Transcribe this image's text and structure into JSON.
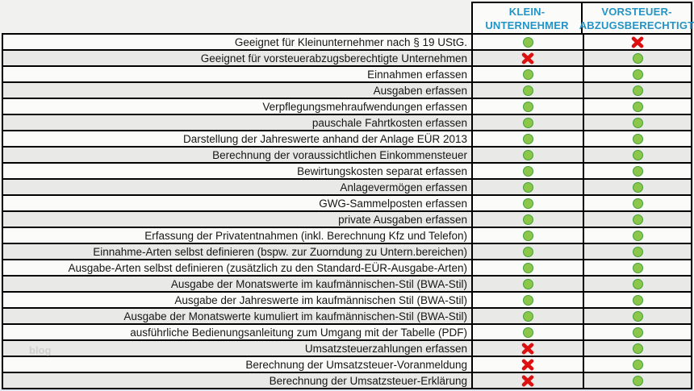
{
  "header": {
    "col1": {
      "line1": "KLEIN-",
      "line2": "UNTERNEHMER"
    },
    "col2": {
      "line1": "VORSTEUER-",
      "line2": "ABZUGSBERECHTIGT"
    }
  },
  "rows": [
    {
      "label": "Geeignet für Kleinunternehmer nach § 19 UStG.",
      "kleinunternehmer": "check",
      "vorsteuerabzugsberechtigt": "cross"
    },
    {
      "label": "Geeignet für vorsteuerabzugsberechtigte Unternehmen",
      "kleinunternehmer": "cross",
      "vorsteuerabzugsberechtigt": "check"
    },
    {
      "label": "Einnahmen erfassen",
      "kleinunternehmer": "check",
      "vorsteuerabzugsberechtigt": "check"
    },
    {
      "label": "Ausgaben erfassen",
      "kleinunternehmer": "check",
      "vorsteuerabzugsberechtigt": "check"
    },
    {
      "label": "Verpflegungsmehraufwendungen erfassen",
      "kleinunternehmer": "check",
      "vorsteuerabzugsberechtigt": "check"
    },
    {
      "label": "pauschale Fahrtkosten erfassen",
      "kleinunternehmer": "check",
      "vorsteuerabzugsberechtigt": "check"
    },
    {
      "label": "Darstellung der Jahreswerte anhand der Anlage EÜR 2013",
      "kleinunternehmer": "check",
      "vorsteuerabzugsberechtigt": "check"
    },
    {
      "label": "Berechnung der voraussichtlichen Einkommensteuer",
      "kleinunternehmer": "check",
      "vorsteuerabzugsberechtigt": "check"
    },
    {
      "label": "Bewirtungskosten separat erfassen",
      "kleinunternehmer": "check",
      "vorsteuerabzugsberechtigt": "check"
    },
    {
      "label": "Anlagevermögen erfassen",
      "kleinunternehmer": "check",
      "vorsteuerabzugsberechtigt": "check"
    },
    {
      "label": "GWG-Sammelposten erfassen",
      "kleinunternehmer": "check",
      "vorsteuerabzugsberechtigt": "check"
    },
    {
      "label": "private Ausgaben erfassen",
      "kleinunternehmer": "check",
      "vorsteuerabzugsberechtigt": "check"
    },
    {
      "label": "Erfassung der Privatentnahmen (inkl. Berechnung Kfz und Telefon)",
      "kleinunternehmer": "check",
      "vorsteuerabzugsberechtigt": "check"
    },
    {
      "label": "Einnahme-Arten selbst definieren (bspw. zur Zuorndung zu Untern.bereichen)",
      "kleinunternehmer": "check",
      "vorsteuerabzugsberechtigt": "check"
    },
    {
      "label": "Ausgabe-Arten selbst definieren (zusätzlich zu den Standard-EÜR-Ausgabe-Arten)",
      "kleinunternehmer": "check",
      "vorsteuerabzugsberechtigt": "check"
    },
    {
      "label": "Ausgabe der Monatswerte im kaufmännischen-Stil (BWA-Stil)",
      "kleinunternehmer": "check",
      "vorsteuerabzugsberechtigt": "check"
    },
    {
      "label": "Ausgabe der Jahreswerte im kaufmännischen Stil (BWA-Stil)",
      "kleinunternehmer": "check",
      "vorsteuerabzugsberechtigt": "check"
    },
    {
      "label": "Ausgabe der Monatswerte kumuliert im kaufmännischen-Stil (BWA-Stil)",
      "kleinunternehmer": "check",
      "vorsteuerabzugsberechtigt": "check"
    },
    {
      "label": "ausführliche Bedienungsanleitung zum Umgang mit der Tabelle (PDF)",
      "kleinunternehmer": "check",
      "vorsteuerabzugsberechtigt": "check"
    },
    {
      "label": "Umsatzsteuerzahlungen erfassen",
      "kleinunternehmer": "cross",
      "vorsteuerabzugsberechtigt": "check"
    },
    {
      "label": "Berechnung der Umsatzsteuer-Voranmeldung",
      "kleinunternehmer": "cross",
      "vorsteuerabzugsberechtigt": "check"
    },
    {
      "label": "Berechnung der Umsatzsteuer-Erklärung",
      "kleinunternehmer": "cross",
      "vorsteuerabzugsberechtigt": "check"
    }
  ],
  "watermark": "blog",
  "colors": {
    "page_bg": "#f1f1ef",
    "row_bg": "#fbfbfa",
    "row_alt_bg": "#e9e9e8",
    "border": "#000000",
    "header_text": "#2494c6",
    "check_fill": "#8dc74a",
    "check_border": "#42a03c",
    "cross": "#de1111",
    "watermark_color": "#c9c9c9",
    "bottom_strip": "#e0e6ef"
  }
}
